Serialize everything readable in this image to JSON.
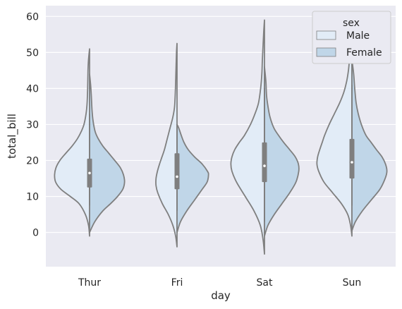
{
  "chart_data": {
    "type": "violin",
    "split": true,
    "xlabel": "day",
    "ylabel": "total_bill",
    "categories": [
      "Thur",
      "Fri",
      "Sat",
      "Sun"
    ],
    "ylim": [
      -9.5,
      63
    ],
    "yticks": [
      0,
      10,
      20,
      30,
      40,
      50,
      60
    ],
    "grid": true,
    "legend": {
      "title": "sex",
      "position": "top-right",
      "entries": [
        {
          "label": "Male",
          "color": "#e2ecf7"
        },
        {
          "label": "Female",
          "color": "#c0d6e8"
        }
      ]
    },
    "colors": {
      "background": "#eaeaf2",
      "grid": "#ffffff",
      "outline": "#7f7f7f",
      "inner_box": "#7f7f7f",
      "median": "#ffffff"
    },
    "series": [
      {
        "name": "Male",
        "side": "left",
        "violins": [
          {
            "day": "Thur",
            "y_min": -1,
            "y_max": 51,
            "median": 16.5,
            "q1": 12.5,
            "q3": 20.5,
            "whisker_low": 7.5,
            "whisker_high": 33,
            "profile": [
              [
                -1,
                0
              ],
              [
                2,
                0.03
              ],
              [
                5,
                0.12
              ],
              [
                8,
                0.3
              ],
              [
                10,
                0.55
              ],
              [
                12,
                0.82
              ],
              [
                14,
                0.97
              ],
              [
                16,
                1.0
              ],
              [
                18,
                0.96
              ],
              [
                20,
                0.85
              ],
              [
                22,
                0.68
              ],
              [
                24,
                0.5
              ],
              [
                26,
                0.35
              ],
              [
                28,
                0.24
              ],
              [
                30,
                0.16
              ],
              [
                33,
                0.1
              ],
              [
                36,
                0.07
              ],
              [
                40,
                0.055
              ],
              [
                45,
                0.045
              ],
              [
                48,
                0.03
              ],
              [
                51,
                0
              ]
            ]
          },
          {
            "day": "Fri",
            "y_min": -4,
            "y_max": 52.5,
            "median": 15.5,
            "q1": 12,
            "q3": 22,
            "whisker_low": 6,
            "whisker_high": 29,
            "profile": [
              [
                -4,
                0
              ],
              [
                -1,
                0.04
              ],
              [
                2,
                0.12
              ],
              [
                5,
                0.25
              ],
              [
                8,
                0.42
              ],
              [
                11,
                0.55
              ],
              [
                13,
                0.6
              ],
              [
                15,
                0.6
              ],
              [
                17,
                0.56
              ],
              [
                19,
                0.5
              ],
              [
                21,
                0.43
              ],
              [
                23,
                0.36
              ],
              [
                26,
                0.28
              ],
              [
                29,
                0.2
              ],
              [
                32,
                0.12
              ],
              [
                35,
                0.07
              ],
              [
                40,
                0.045
              ],
              [
                45,
                0.03
              ],
              [
                50,
                0.015
              ],
              [
                52.5,
                0
              ]
            ]
          },
          {
            "day": "Sat",
            "y_min": -6,
            "y_max": 59,
            "median": 18.5,
            "q1": 14,
            "q3": 25,
            "whisker_low": 3,
            "whisker_high": 40,
            "profile": [
              [
                -6,
                0
              ],
              [
                -2,
                0.04
              ],
              [
                2,
                0.12
              ],
              [
                6,
                0.3
              ],
              [
                10,
                0.55
              ],
              [
                14,
                0.8
              ],
              [
                17,
                0.93
              ],
              [
                19,
                0.96
              ],
              [
                21,
                0.93
              ],
              [
                23,
                0.85
              ],
              [
                25,
                0.72
              ],
              [
                27,
                0.57
              ],
              [
                30,
                0.4
              ],
              [
                33,
                0.27
              ],
              [
                36,
                0.17
              ],
              [
                40,
                0.11
              ],
              [
                44,
                0.075
              ],
              [
                48,
                0.06
              ],
              [
                52,
                0.04
              ],
              [
                56,
                0.02
              ],
              [
                59,
                0
              ]
            ]
          },
          {
            "day": "Sun",
            "y_min": -1,
            "y_max": 55,
            "median": 19.5,
            "q1": 15,
            "q3": 26,
            "whisker_low": 7.5,
            "whisker_high": 41,
            "profile": [
              [
                -1,
                0
              ],
              [
                2,
                0.04
              ],
              [
                5,
                0.12
              ],
              [
                8,
                0.3
              ],
              [
                11,
                0.55
              ],
              [
                14,
                0.8
              ],
              [
                17,
                0.95
              ],
              [
                19,
                1.0
              ],
              [
                21,
                0.98
              ],
              [
                23,
                0.92
              ],
              [
                25,
                0.85
              ],
              [
                27,
                0.78
              ],
              [
                30,
                0.65
              ],
              [
                33,
                0.5
              ],
              [
                36,
                0.35
              ],
              [
                39,
                0.23
              ],
              [
                42,
                0.15
              ],
              [
                45,
                0.1
              ],
              [
                48,
                0.07
              ],
              [
                51,
                0.04
              ],
              [
                55,
                0
              ]
            ]
          }
        ]
      },
      {
        "name": "Female",
        "side": "right",
        "violins": [
          {
            "day": "Thur",
            "y_min": 0,
            "y_max": 44,
            "median": 16.5,
            "q1": 12.5,
            "q3": 20.5,
            "whisker_low": 7.5,
            "whisker_high": 33,
            "profile": [
              [
                0,
                0
              ],
              [
                3,
                0.15
              ],
              [
                6,
                0.38
              ],
              [
                8,
                0.6
              ],
              [
                10,
                0.8
              ],
              [
                12,
                0.95
              ],
              [
                14,
                1.0
              ],
              [
                16,
                0.97
              ],
              [
                18,
                0.88
              ],
              [
                20,
                0.72
              ],
              [
                22,
                0.55
              ],
              [
                24,
                0.38
              ],
              [
                26,
                0.25
              ],
              [
                28,
                0.16
              ],
              [
                31,
                0.1
              ],
              [
                34,
                0.07
              ],
              [
                38,
                0.05
              ],
              [
                41,
                0.03
              ],
              [
                44,
                0
              ]
            ]
          },
          {
            "day": "Fri",
            "y_min": 0,
            "y_max": 30,
            "median": 15.5,
            "q1": 12,
            "q3": 22,
            "whisker_low": 6,
            "whisker_high": 29,
            "profile": [
              [
                0,
                0
              ],
              [
                3,
                0.1
              ],
              [
                6,
                0.28
              ],
              [
                9,
                0.5
              ],
              [
                12,
                0.72
              ],
              [
                14,
                0.86
              ],
              [
                16,
                0.9
              ],
              [
                17,
                0.87
              ],
              [
                19,
                0.72
              ],
              [
                21,
                0.5
              ],
              [
                23,
                0.32
              ],
              [
                25,
                0.2
              ],
              [
                27,
                0.12
              ],
              [
                29,
                0.05
              ],
              [
                30,
                0
              ]
            ]
          },
          {
            "day": "Sat",
            "y_min": -1,
            "y_max": 46,
            "median": 18.5,
            "q1": 14,
            "q3": 25,
            "whisker_low": 3,
            "whisker_high": 40,
            "profile": [
              [
                -1,
                0
              ],
              [
                2,
                0.1
              ],
              [
                5,
                0.28
              ],
              [
                8,
                0.5
              ],
              [
                11,
                0.72
              ],
              [
                14,
                0.9
              ],
              [
                17,
                0.98
              ],
              [
                19,
                0.97
              ],
              [
                21,
                0.88
              ],
              [
                23,
                0.72
              ],
              [
                25,
                0.55
              ],
              [
                27,
                0.4
              ],
              [
                29,
                0.27
              ],
              [
                32,
                0.16
              ],
              [
                35,
                0.1
              ],
              [
                38,
                0.06
              ],
              [
                42,
                0.04
              ],
              [
                46,
                0
              ]
            ]
          },
          {
            "day": "Sun",
            "y_min": 0.5,
            "y_max": 48,
            "median": 19.5,
            "q1": 15,
            "q3": 26,
            "whisker_low": 7.5,
            "whisker_high": 41,
            "profile": [
              [
                0.5,
                0
              ],
              [
                3,
                0.1
              ],
              [
                6,
                0.3
              ],
              [
                9,
                0.55
              ],
              [
                12,
                0.8
              ],
              [
                15,
                0.95
              ],
              [
                17,
                1.0
              ],
              [
                19,
                0.96
              ],
              [
                21,
                0.86
              ],
              [
                23,
                0.7
              ],
              [
                25,
                0.55
              ],
              [
                27,
                0.4
              ],
              [
                30,
                0.27
              ],
              [
                33,
                0.18
              ],
              [
                36,
                0.12
              ],
              [
                40,
                0.08
              ],
              [
                44,
                0.05
              ],
              [
                48,
                0
              ]
            ]
          }
        ]
      }
    ]
  }
}
